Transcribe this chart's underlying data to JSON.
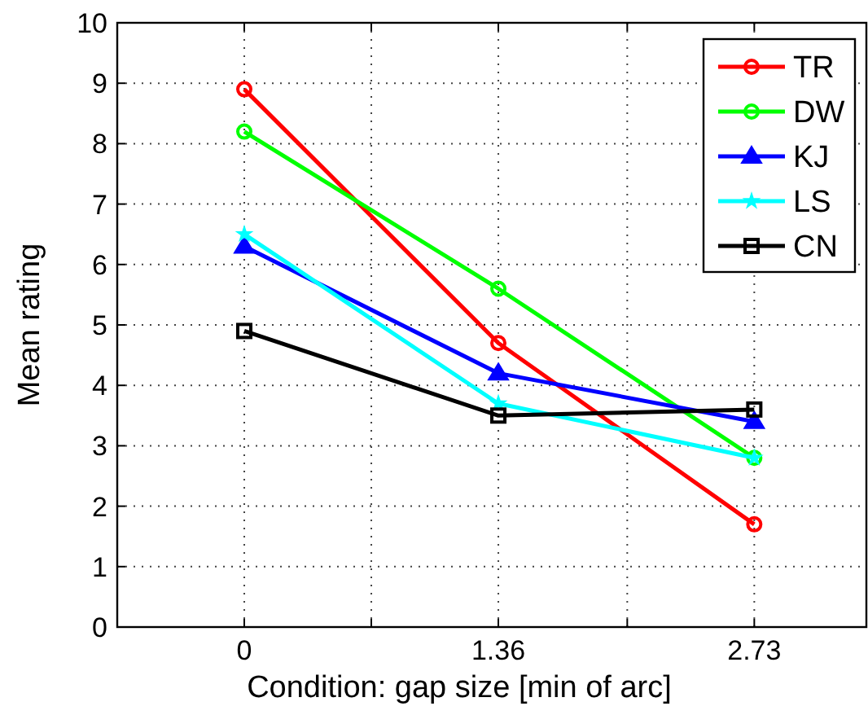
{
  "chart_data": {
    "type": "line",
    "xlabel": "Condition: gap size [min of arc]",
    "ylabel": "Mean rating",
    "x": [
      0,
      1.36,
      2.73
    ],
    "xlim": [
      -0.68,
      3.33
    ],
    "xticks": [
      {
        "value": 0,
        "label": "0"
      },
      {
        "value": 0.68,
        "label": null
      },
      {
        "value": 1.36,
        "label": "1.36"
      },
      {
        "value": 2.05,
        "label": null
      },
      {
        "value": 2.73,
        "label": "2.73"
      }
    ],
    "ylim": [
      0,
      10
    ],
    "yticks": [
      0,
      1,
      2,
      3,
      4,
      5,
      6,
      7,
      8,
      9,
      10
    ],
    "grid": true,
    "legend": "top right",
    "line_style": "solid",
    "series": [
      {
        "name": "TR",
        "color": "#ff0000",
        "marker": "circle",
        "values": [
          8.9,
          4.7,
          1.7
        ]
      },
      {
        "name": "DW",
        "color": "#00ff00",
        "marker": "circle",
        "values": [
          8.2,
          5.6,
          2.8
        ]
      },
      {
        "name": "KJ",
        "color": "#0000ff",
        "marker": "triangle",
        "values": [
          6.3,
          4.2,
          3.4
        ]
      },
      {
        "name": "LS",
        "color": "#00ffff",
        "marker": "star",
        "values": [
          6.5,
          3.7,
          2.8
        ]
      },
      {
        "name": "CN",
        "color": "#000000",
        "marker": "square",
        "values": [
          4.9,
          3.5,
          3.6
        ]
      }
    ]
  }
}
